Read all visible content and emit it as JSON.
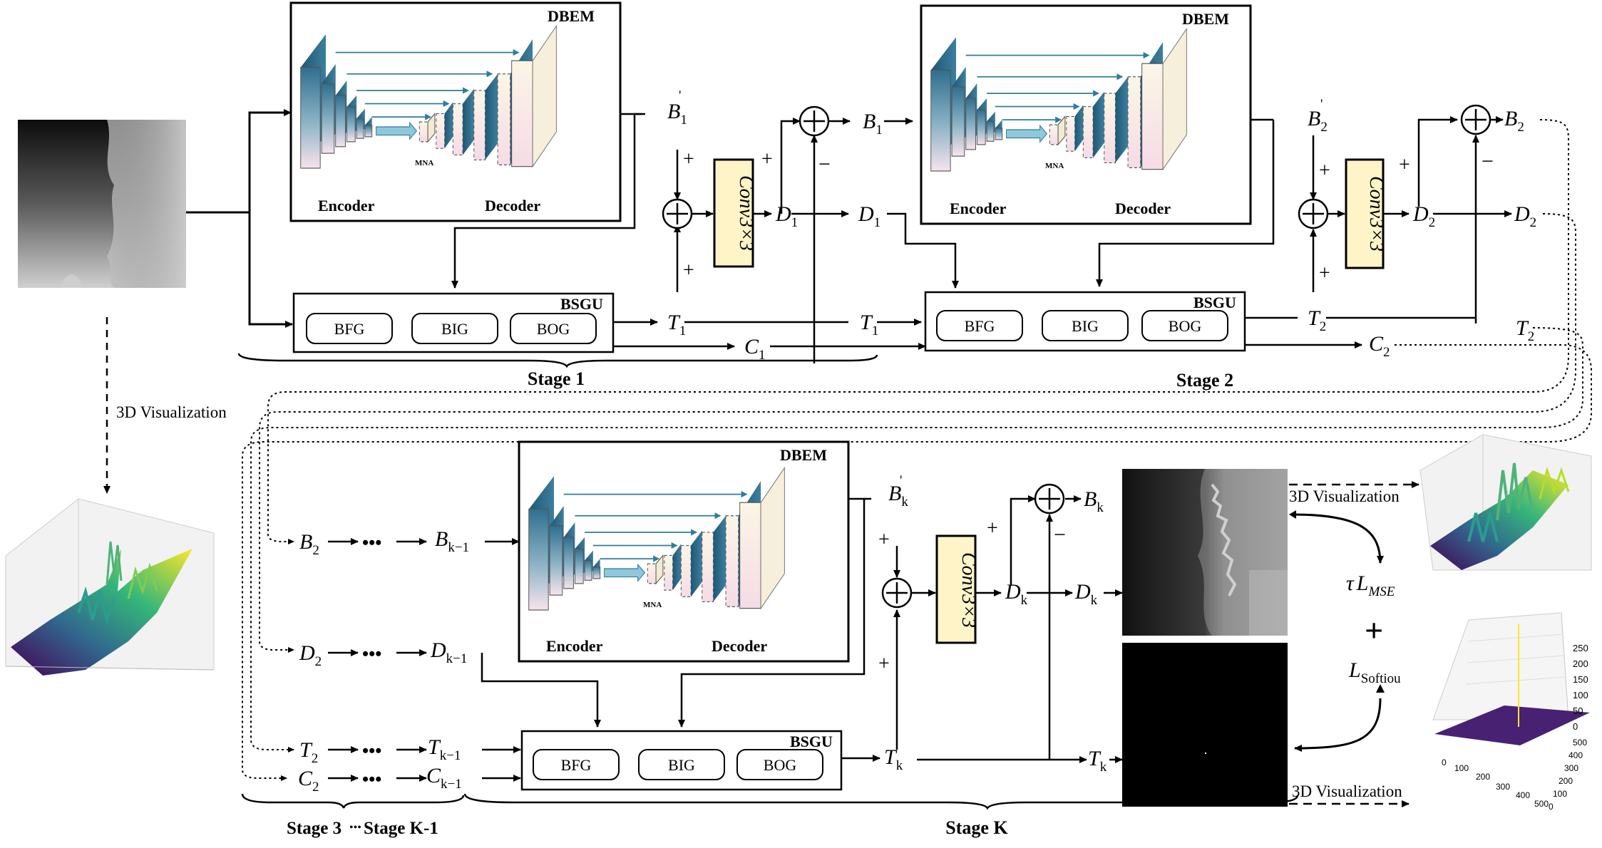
{
  "modules": {
    "dbem": "DBEM",
    "bsgu": "BSGU",
    "encoder": "Encoder",
    "decoder": "Decoder",
    "mna": "MNA",
    "bfg": "BFG",
    "big": "BIG",
    "bog": "BOG",
    "conv": "Conv3×3"
  },
  "stages": {
    "stage1": "Stage 1",
    "stage2": "Stage 2",
    "stage3": "Stage 3",
    "stage_k1": "Stage K-1",
    "stage_k": "Stage K"
  },
  "vars": {
    "B": "B",
    "D": "D",
    "T": "T",
    "C": "C",
    "prime": "'",
    "sub1": "1",
    "sub2": "2",
    "subk": "k",
    "subk1": "k−1",
    "dots": "•••"
  },
  "ops": {
    "plus": "+",
    "minus": "−"
  },
  "viz": "3D Visualization",
  "loss": {
    "tau": "τ",
    "L": "L",
    "mse": "MSE",
    "softiou": "Softiou",
    "plus": "+"
  },
  "plot_small": {
    "z_ticks": [
      "250",
      "200",
      "150",
      "100",
      "50",
      "0"
    ],
    "x_ticks": [
      "0",
      "100",
      "200",
      "300",
      "400",
      "500"
    ],
    "y_ticks": [
      "500",
      "400",
      "300",
      "200",
      "100",
      "0"
    ]
  }
}
